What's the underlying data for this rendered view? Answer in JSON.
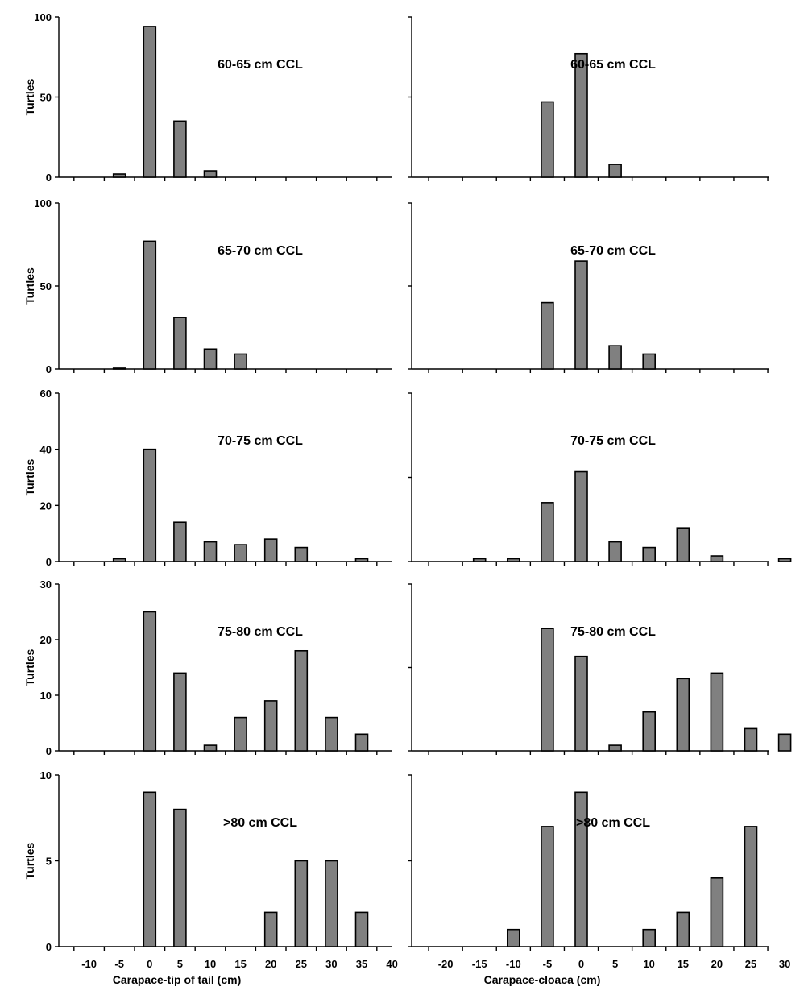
{
  "chart_data": [
    {
      "type": "bar",
      "title": "60-65 cm CCL",
      "ylabel": "Turtles",
      "xlabel": "",
      "ylim": [
        0,
        100
      ],
      "yticks": [
        0,
        50,
        100
      ],
      "x_categories": [
        -10,
        -5,
        0,
        5,
        10,
        15,
        20,
        25,
        30,
        35,
        40
      ],
      "x": [
        -5,
        0,
        5,
        10
      ],
      "values": [
        2,
        94,
        35,
        4
      ]
    },
    {
      "type": "bar",
      "title": "60-65 cm CCL",
      "ylabel": "",
      "xlabel": "",
      "ylim": [
        0,
        100
      ],
      "yticks": [],
      "x_categories": [
        -20,
        -15,
        -10,
        -5,
        0,
        5,
        10,
        15,
        20,
        25,
        30
      ],
      "x": [
        -5,
        0,
        5
      ],
      "values": [
        47,
        77,
        8
      ]
    },
    {
      "type": "bar",
      "title": "65-70 cm CCL",
      "ylabel": "Turtles",
      "xlabel": "",
      "ylim": [
        0,
        100
      ],
      "yticks": [
        0,
        50,
        100
      ],
      "x_categories": [
        -10,
        -5,
        0,
        5,
        10,
        15,
        20,
        25,
        30,
        35,
        40
      ],
      "x": [
        -5,
        0,
        5,
        10,
        15
      ],
      "values": [
        0.5,
        77,
        31,
        12,
        9
      ]
    },
    {
      "type": "bar",
      "title": "65-70 cm CCL",
      "ylabel": "",
      "xlabel": "",
      "ylim": [
        0,
        100
      ],
      "yticks": [],
      "x_categories": [
        -20,
        -15,
        -10,
        -5,
        0,
        5,
        10,
        15,
        20,
        25,
        30
      ],
      "x": [
        -5,
        0,
        5,
        10
      ],
      "values": [
        40,
        65,
        14,
        9
      ]
    },
    {
      "type": "bar",
      "title": "70-75 cm CCL",
      "ylabel": "Turtles",
      "xlabel": "",
      "ylim": [
        0,
        60
      ],
      "yticks": [
        0,
        20,
        40,
        60
      ],
      "x_categories": [
        -10,
        -5,
        0,
        5,
        10,
        15,
        20,
        25,
        30,
        35,
        40
      ],
      "x": [
        -5,
        0,
        5,
        10,
        15,
        20,
        25,
        35
      ],
      "values": [
        1,
        40,
        14,
        7,
        6,
        8,
        5,
        1
      ]
    },
    {
      "type": "bar",
      "title": "70-75 cm CCL",
      "ylabel": "",
      "xlabel": "",
      "ylim": [
        0,
        60
      ],
      "yticks": [],
      "x_categories": [
        -20,
        -15,
        -10,
        -5,
        0,
        5,
        10,
        15,
        20,
        25,
        30
      ],
      "x": [
        -15,
        -10,
        -5,
        0,
        5,
        10,
        15,
        20,
        30
      ],
      "values": [
        1,
        1,
        21,
        32,
        7,
        5,
        12,
        2,
        1
      ]
    },
    {
      "type": "bar",
      "title": "75-80 cm CCL",
      "ylabel": "Turtles",
      "xlabel": "",
      "ylim": [
        0,
        30
      ],
      "yticks": [
        0,
        10,
        20,
        30
      ],
      "x_categories": [
        -10,
        -5,
        0,
        5,
        10,
        15,
        20,
        25,
        30,
        35,
        40
      ],
      "x": [
        0,
        5,
        10,
        15,
        20,
        25,
        30,
        35
      ],
      "values": [
        25,
        14,
        1,
        6,
        9,
        18,
        6,
        3
      ]
    },
    {
      "type": "bar",
      "title": "75-80 cm CCL",
      "ylabel": "",
      "xlabel": "",
      "ylim": [
        0,
        30
      ],
      "yticks": [],
      "x_categories": [
        -20,
        -15,
        -10,
        -5,
        0,
        5,
        10,
        15,
        20,
        25,
        30
      ],
      "x": [
        -5,
        0,
        5,
        10,
        15,
        20,
        25,
        30
      ],
      "values": [
        22,
        17,
        1,
        7,
        13,
        14,
        4,
        3
      ]
    },
    {
      "type": "bar",
      "title": ">80 cm CCL",
      "ylabel": "Turtles",
      "xlabel": "Carapace-tip of tail (cm)",
      "ylim": [
        0,
        10
      ],
      "yticks": [
        0,
        5,
        10
      ],
      "x_categories": [
        -10,
        -5,
        0,
        5,
        10,
        15,
        20,
        25,
        30,
        35,
        40
      ],
      "x": [
        0,
        5,
        20,
        25,
        30,
        35
      ],
      "values": [
        9,
        8,
        2,
        5,
        5,
        2
      ]
    },
    {
      "type": "bar",
      "title": ">80 cm CCL",
      "ylabel": "",
      "xlabel": "Carapace-cloaca (cm)",
      "ylim": [
        0,
        10
      ],
      "yticks": [],
      "x_categories": [
        -20,
        -15,
        -10,
        -5,
        0,
        5,
        10,
        15,
        20,
        25,
        30
      ],
      "x": [
        -10,
        -5,
        0,
        10,
        15,
        20,
        25
      ],
      "values": [
        1,
        7,
        9,
        1,
        2,
        4,
        7
      ]
    }
  ]
}
